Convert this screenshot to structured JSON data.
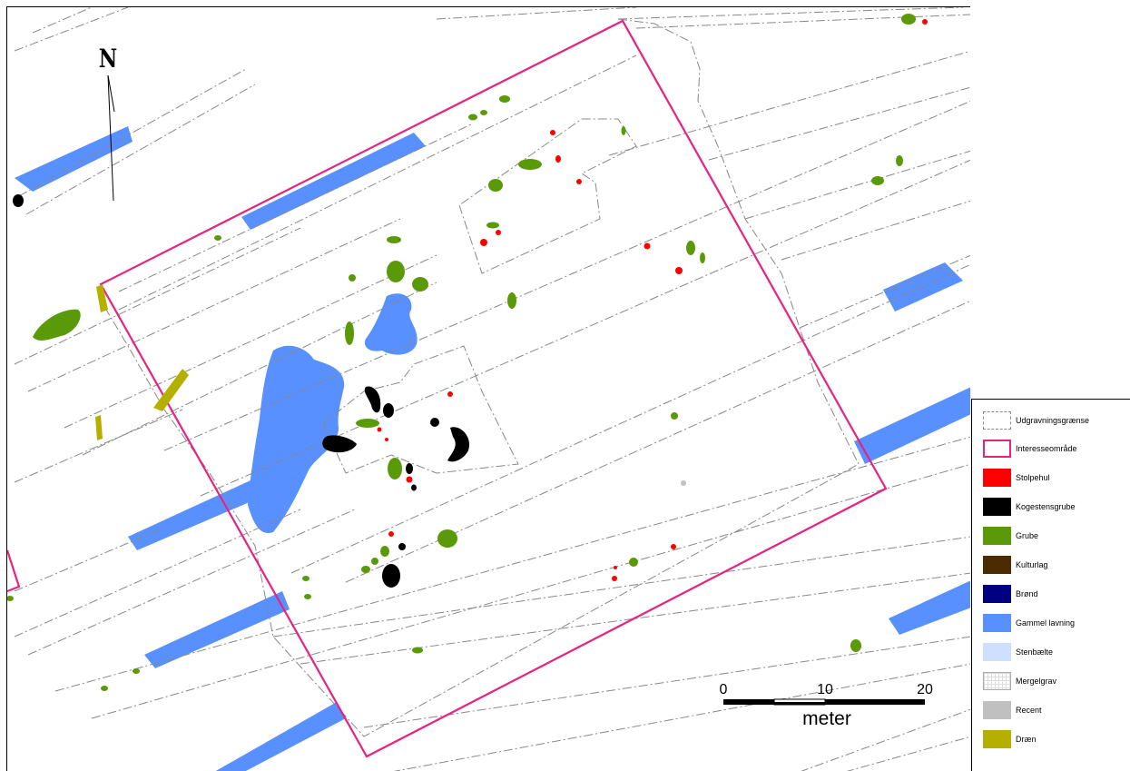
{
  "north_arrow": {
    "label": "N"
  },
  "scale_bar": {
    "ticks": [
      "0",
      "10",
      "20"
    ],
    "unit": "meter"
  },
  "legend": {
    "items": [
      {
        "label": "Udgravningsgrænse",
        "swatch": "dashdot-outline",
        "color": "#888888"
      },
      {
        "label": "Interesseområde",
        "swatch": "outline",
        "color": "#e6237e"
      },
      {
        "label": "Stolpehul",
        "swatch": "fill",
        "color": "#ff0000"
      },
      {
        "label": "Kogestensgrube",
        "swatch": "fill",
        "color": "#000000"
      },
      {
        "label": "Grube",
        "swatch": "fill",
        "color": "#5a9a08"
      },
      {
        "label": "Kulturlag",
        "swatch": "fill",
        "color": "#4d2b00"
      },
      {
        "label": "Brønd",
        "swatch": "fill",
        "color": "#000080"
      },
      {
        "label": "Gammel lavning",
        "swatch": "fill",
        "color": "#5990ff"
      },
      {
        "label": "Stenbælte",
        "swatch": "fill",
        "color": "#cfe0ff"
      },
      {
        "label": "Mergelgrav",
        "swatch": "grid",
        "color": "#dddddd"
      },
      {
        "label": "Recent",
        "swatch": "fill",
        "color": "#c0c0c0"
      },
      {
        "label": "Dræn",
        "swatch": "fill",
        "color": "#b5b000"
      }
    ]
  },
  "colors": {
    "boundary": "#888888",
    "interest_area": "#e6237e",
    "posthole": "#ff0000",
    "cooking_pit": "#000000",
    "pit": "#5a9a08",
    "old_hollow": "#5990ff",
    "drain": "#b5b000",
    "recent": "#c0c0c0"
  }
}
